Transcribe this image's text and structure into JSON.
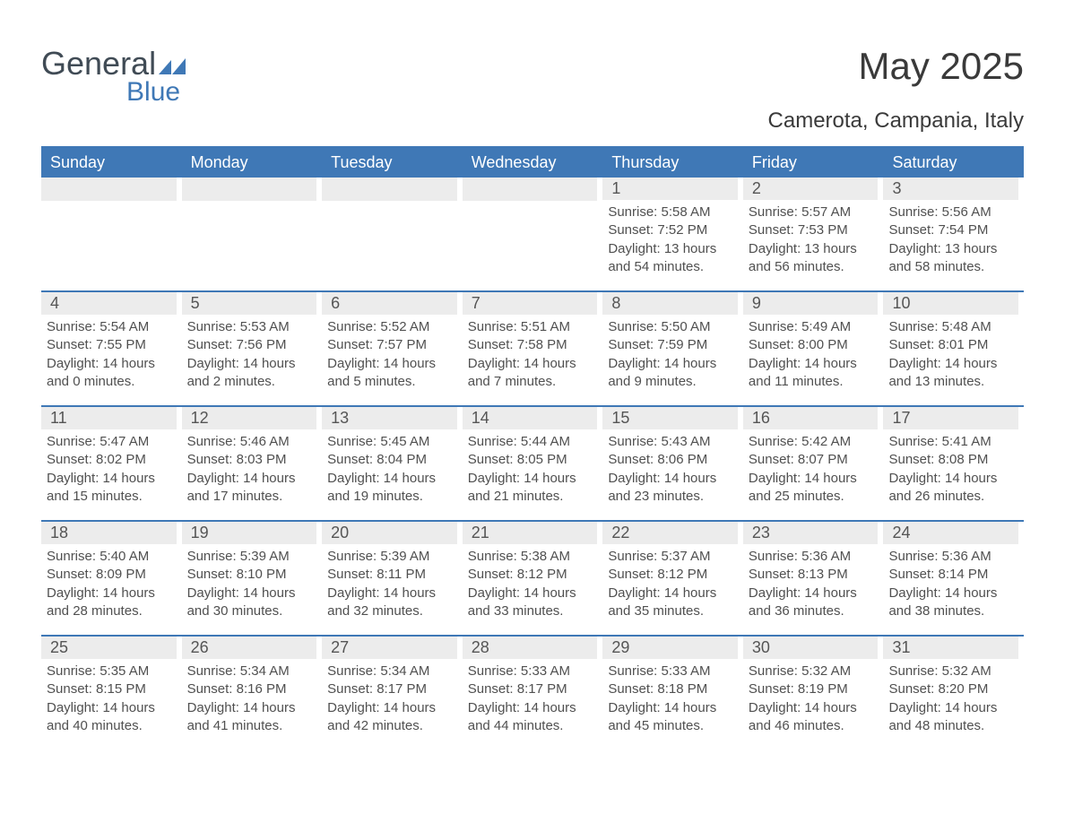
{
  "logo": {
    "general": "General",
    "blue": "Blue"
  },
  "title": "May 2025",
  "subtitle": "Camerota, Campania, Italy",
  "colors": {
    "brand_blue": "#3f78b6",
    "grey_bar": "#ececec",
    "text_dark": "#404040",
    "bg": "#ffffff"
  },
  "typography": {
    "title_fontsize": 42,
    "subtitle_fontsize": 24,
    "weekday_fontsize": 18,
    "daynum_fontsize": 18,
    "body_fontsize": 15
  },
  "weekdays": [
    "Sunday",
    "Monday",
    "Tuesday",
    "Wednesday",
    "Thursday",
    "Friday",
    "Saturday"
  ],
  "weeks": [
    [
      {
        "empty": true
      },
      {
        "empty": true
      },
      {
        "empty": true
      },
      {
        "empty": true
      },
      {
        "day": 1,
        "sunrise": "5:58 AM",
        "sunset": "7:52 PM",
        "daylight": "13 hours and 54 minutes."
      },
      {
        "day": 2,
        "sunrise": "5:57 AM",
        "sunset": "7:53 PM",
        "daylight": "13 hours and 56 minutes."
      },
      {
        "day": 3,
        "sunrise": "5:56 AM",
        "sunset": "7:54 PM",
        "daylight": "13 hours and 58 minutes."
      }
    ],
    [
      {
        "day": 4,
        "sunrise": "5:54 AM",
        "sunset": "7:55 PM",
        "daylight": "14 hours and 0 minutes."
      },
      {
        "day": 5,
        "sunrise": "5:53 AM",
        "sunset": "7:56 PM",
        "daylight": "14 hours and 2 minutes."
      },
      {
        "day": 6,
        "sunrise": "5:52 AM",
        "sunset": "7:57 PM",
        "daylight": "14 hours and 5 minutes."
      },
      {
        "day": 7,
        "sunrise": "5:51 AM",
        "sunset": "7:58 PM",
        "daylight": "14 hours and 7 minutes."
      },
      {
        "day": 8,
        "sunrise": "5:50 AM",
        "sunset": "7:59 PM",
        "daylight": "14 hours and 9 minutes."
      },
      {
        "day": 9,
        "sunrise": "5:49 AM",
        "sunset": "8:00 PM",
        "daylight": "14 hours and 11 minutes."
      },
      {
        "day": 10,
        "sunrise": "5:48 AM",
        "sunset": "8:01 PM",
        "daylight": "14 hours and 13 minutes."
      }
    ],
    [
      {
        "day": 11,
        "sunrise": "5:47 AM",
        "sunset": "8:02 PM",
        "daylight": "14 hours and 15 minutes."
      },
      {
        "day": 12,
        "sunrise": "5:46 AM",
        "sunset": "8:03 PM",
        "daylight": "14 hours and 17 minutes."
      },
      {
        "day": 13,
        "sunrise": "5:45 AM",
        "sunset": "8:04 PM",
        "daylight": "14 hours and 19 minutes."
      },
      {
        "day": 14,
        "sunrise": "5:44 AM",
        "sunset": "8:05 PM",
        "daylight": "14 hours and 21 minutes."
      },
      {
        "day": 15,
        "sunrise": "5:43 AM",
        "sunset": "8:06 PM",
        "daylight": "14 hours and 23 minutes."
      },
      {
        "day": 16,
        "sunrise": "5:42 AM",
        "sunset": "8:07 PM",
        "daylight": "14 hours and 25 minutes."
      },
      {
        "day": 17,
        "sunrise": "5:41 AM",
        "sunset": "8:08 PM",
        "daylight": "14 hours and 26 minutes."
      }
    ],
    [
      {
        "day": 18,
        "sunrise": "5:40 AM",
        "sunset": "8:09 PM",
        "daylight": "14 hours and 28 minutes."
      },
      {
        "day": 19,
        "sunrise": "5:39 AM",
        "sunset": "8:10 PM",
        "daylight": "14 hours and 30 minutes."
      },
      {
        "day": 20,
        "sunrise": "5:39 AM",
        "sunset": "8:11 PM",
        "daylight": "14 hours and 32 minutes."
      },
      {
        "day": 21,
        "sunrise": "5:38 AM",
        "sunset": "8:12 PM",
        "daylight": "14 hours and 33 minutes."
      },
      {
        "day": 22,
        "sunrise": "5:37 AM",
        "sunset": "8:12 PM",
        "daylight": "14 hours and 35 minutes."
      },
      {
        "day": 23,
        "sunrise": "5:36 AM",
        "sunset": "8:13 PM",
        "daylight": "14 hours and 36 minutes."
      },
      {
        "day": 24,
        "sunrise": "5:36 AM",
        "sunset": "8:14 PM",
        "daylight": "14 hours and 38 minutes."
      }
    ],
    [
      {
        "day": 25,
        "sunrise": "5:35 AM",
        "sunset": "8:15 PM",
        "daylight": "14 hours and 40 minutes."
      },
      {
        "day": 26,
        "sunrise": "5:34 AM",
        "sunset": "8:16 PM",
        "daylight": "14 hours and 41 minutes."
      },
      {
        "day": 27,
        "sunrise": "5:34 AM",
        "sunset": "8:17 PM",
        "daylight": "14 hours and 42 minutes."
      },
      {
        "day": 28,
        "sunrise": "5:33 AM",
        "sunset": "8:17 PM",
        "daylight": "14 hours and 44 minutes."
      },
      {
        "day": 29,
        "sunrise": "5:33 AM",
        "sunset": "8:18 PM",
        "daylight": "14 hours and 45 minutes."
      },
      {
        "day": 30,
        "sunrise": "5:32 AM",
        "sunset": "8:19 PM",
        "daylight": "14 hours and 46 minutes."
      },
      {
        "day": 31,
        "sunrise": "5:32 AM",
        "sunset": "8:20 PM",
        "daylight": "14 hours and 48 minutes."
      }
    ]
  ],
  "labels": {
    "sunrise": "Sunrise: ",
    "sunset": "Sunset: ",
    "daylight": "Daylight: "
  }
}
